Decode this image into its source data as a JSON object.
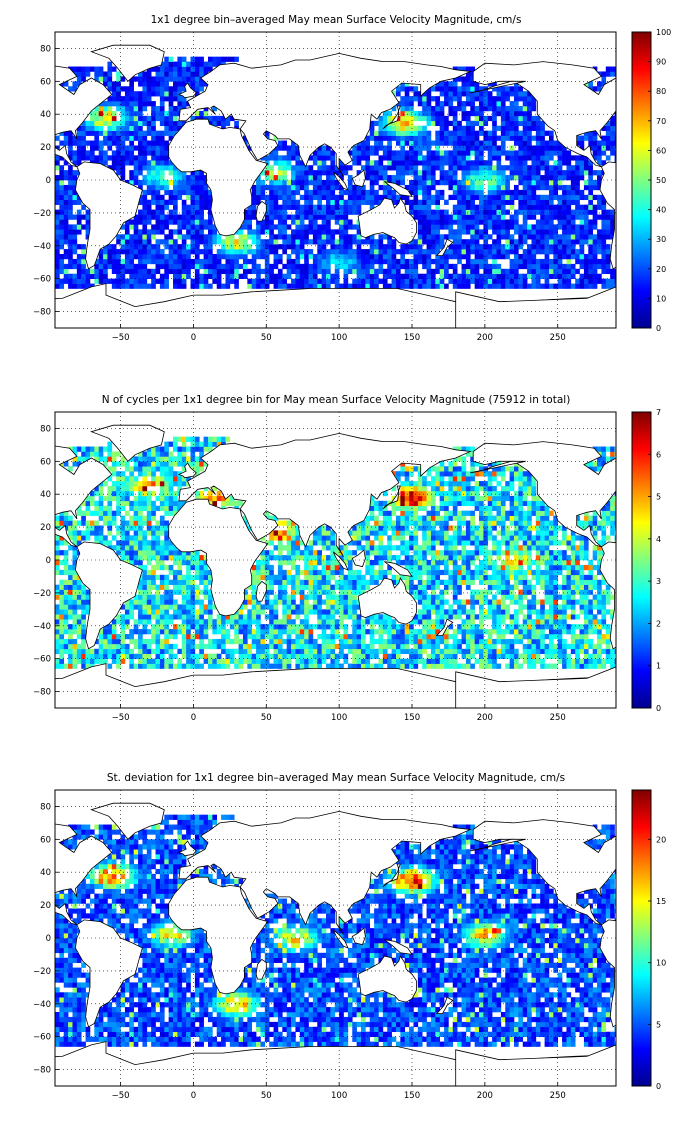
{
  "chart_data": [
    {
      "type": "heatmap",
      "title": "1x1 degree bin–averaged May mean Surface Velocity Magnitude, cm/s",
      "xlim": [
        -95,
        290
      ],
      "ylim": [
        -90,
        90
      ],
      "x_ticks": [
        -50,
        0,
        50,
        100,
        150,
        200,
        250
      ],
      "y_ticks": [
        -80,
        -60,
        -40,
        -20,
        0,
        20,
        40,
        60,
        80
      ],
      "grid": true,
      "colormap": "jet",
      "colorbar": {
        "min": 0,
        "max": 100,
        "ticks": [
          0,
          10,
          20,
          30,
          40,
          50,
          60,
          70,
          80,
          90,
          100
        ]
      },
      "base_level": 0.18,
      "hotspots": [
        {
          "region": "Gulf Stream",
          "lon": -60,
          "lat": 38,
          "level": 0.7
        },
        {
          "region": "Kuroshio",
          "lon": 145,
          "lat": 35,
          "level": 0.75
        },
        {
          "region": "Equatorial Pacific",
          "lon": 200,
          "lat": 0,
          "level": 0.55
        },
        {
          "region": "Equatorial Atlantic",
          "lon": -20,
          "lat": 2,
          "level": 0.5
        },
        {
          "region": "Somali Current",
          "lon": 55,
          "lat": 5,
          "level": 0.6
        },
        {
          "region": "Agulhas",
          "lon": 30,
          "lat": -38,
          "level": 0.65
        },
        {
          "region": "Antarctic Circumpolar",
          "lon": 100,
          "lat": -50,
          "level": 0.4
        }
      ]
    },
    {
      "type": "heatmap",
      "title": "N of cycles per 1x1 degree bin for May mean Surface Velocity Magnitude (75912 in total)",
      "xlim": [
        -95,
        290
      ],
      "ylim": [
        -90,
        90
      ],
      "x_ticks": [
        -50,
        0,
        50,
        100,
        150,
        200,
        250
      ],
      "y_ticks": [
        -80,
        -60,
        -40,
        -20,
        0,
        20,
        40,
        60,
        80
      ],
      "grid": true,
      "colormap": "jet",
      "colorbar": {
        "min": 0,
        "max": 7,
        "ticks": [
          0,
          1,
          2,
          3,
          4,
          5,
          6,
          7
        ]
      },
      "base_level": 0.4,
      "hotspots": [
        {
          "region": "Kuroshio",
          "lon": 150,
          "lat": 38,
          "level": 1.0
        },
        {
          "region": "Red Sea / Arabian Sea",
          "lon": 55,
          "lat": 18,
          "level": 0.95
        },
        {
          "region": "North Atlantic",
          "lon": -30,
          "lat": 45,
          "level": 0.8
        },
        {
          "region": "Mediterranean",
          "lon": 15,
          "lat": 38,
          "level": 0.85
        },
        {
          "region": "Equatorial Pacific",
          "lon": 220,
          "lat": 0,
          "level": 0.7
        }
      ]
    },
    {
      "type": "heatmap",
      "title": "St. deviation for 1x1 degree bin–averaged May mean Surface Velocity Magnitude, cm/s",
      "xlim": [
        -95,
        290
      ],
      "ylim": [
        -90,
        90
      ],
      "x_ticks": [
        -50,
        0,
        50,
        100,
        150,
        200,
        250
      ],
      "y_ticks": [
        -80,
        -60,
        -40,
        -20,
        0,
        20,
        40,
        60,
        80
      ],
      "grid": true,
      "colormap": "jet",
      "colorbar": {
        "min": 0,
        "max": 24,
        "ticks": [
          0,
          5,
          10,
          15,
          20
        ]
      },
      "base_level": 0.22,
      "hotspots": [
        {
          "region": "Kuroshio",
          "lon": 150,
          "lat": 35,
          "level": 0.9
        },
        {
          "region": "Gulf Stream",
          "lon": -55,
          "lat": 38,
          "level": 0.85
        },
        {
          "region": "Equatorial Pacific",
          "lon": 200,
          "lat": 2,
          "level": 0.75
        },
        {
          "region": "Equatorial Atlantic",
          "lon": -15,
          "lat": 2,
          "level": 0.7
        },
        {
          "region": "Agulhas",
          "lon": 30,
          "lat": -40,
          "level": 0.75
        },
        {
          "region": "Indian Ocean equator",
          "lon": 70,
          "lat": 0,
          "level": 0.7
        }
      ]
    }
  ]
}
